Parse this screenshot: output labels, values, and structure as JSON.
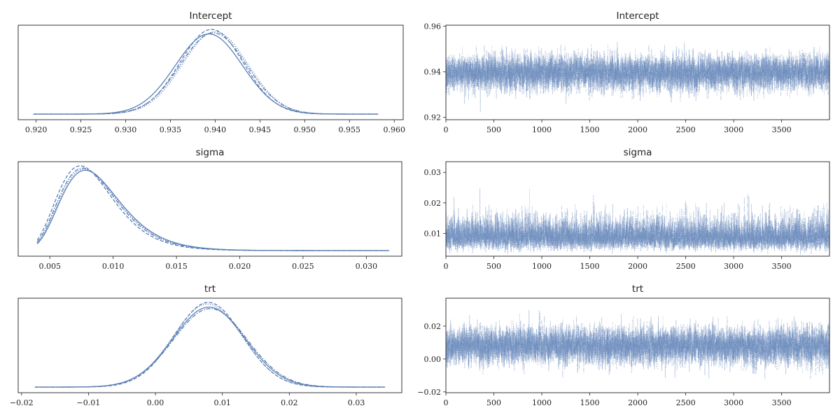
{
  "chart_data": [
    {
      "type": "line",
      "panel": "density",
      "title": "Intercept",
      "xlim": [
        0.918,
        0.961
      ],
      "x_ticks": [
        0.92,
        0.925,
        0.93,
        0.935,
        0.94,
        0.945,
        0.95,
        0.955,
        0.96
      ],
      "x_tick_labels": [
        "0.920",
        "0.925",
        "0.930",
        "0.935",
        "0.940",
        "0.945",
        "0.950",
        "0.955",
        "0.960"
      ],
      "y_ticks_visible": false,
      "support": [
        0.9197,
        0.9582
      ],
      "series": [
        {
          "style": "solid",
          "mean": 0.9393,
          "sd": 0.00375
        },
        {
          "style": "dotted",
          "mean": 0.94,
          "sd": 0.00365
        },
        {
          "style": "dashed",
          "mean": 0.9396,
          "sd": 0.00355
        },
        {
          "style": "dash-dot",
          "mean": 0.9398,
          "sd": 0.0037
        }
      ],
      "color": "#5b7fb4"
    },
    {
      "type": "line",
      "panel": "trace",
      "title": "Intercept",
      "xlim": [
        0,
        3999
      ],
      "ylim": [
        0.919,
        0.9605
      ],
      "x_ticks": [
        0,
        500,
        1000,
        1500,
        2000,
        2500,
        3000,
        3500
      ],
      "x_tick_labels": [
        "0",
        "500",
        "1000",
        "1500",
        "2000",
        "2500",
        "3000",
        "3500"
      ],
      "y_ticks": [
        0.92,
        0.94,
        0.96
      ],
      "y_tick_labels": [
        "0.92",
        "0.94",
        "0.96"
      ],
      "draws": 4000,
      "chains": 4,
      "center": 0.9397,
      "spread": 0.0037,
      "color": "#5b7fb4"
    },
    {
      "type": "line",
      "panel": "density",
      "title": "sigma",
      "xlim": [
        0.0025,
        0.0328
      ],
      "x_ticks": [
        0.005,
        0.01,
        0.015,
        0.02,
        0.025,
        0.03
      ],
      "x_tick_labels": [
        "0.005",
        "0.010",
        "0.015",
        "0.020",
        "0.025",
        "0.030"
      ],
      "y_ticks_visible": false,
      "support": [
        0.004,
        0.0318
      ],
      "series": [
        {
          "style": "solid",
          "mode": 0.0078
        },
        {
          "style": "dotted",
          "mode": 0.0077
        },
        {
          "style": "dashed",
          "mode": 0.0074
        },
        {
          "style": "dash-dot",
          "mode": 0.0076
        }
      ],
      "color": "#5b7fb4"
    },
    {
      "type": "line",
      "panel": "trace",
      "title": "sigma",
      "xlim": [
        0,
        3999
      ],
      "ylim": [
        0.0025,
        0.0335
      ],
      "x_ticks": [
        0,
        500,
        1000,
        1500,
        2000,
        2500,
        3000,
        3500
      ],
      "x_tick_labels": [
        "0",
        "500",
        "1000",
        "1500",
        "2000",
        "2500",
        "3000",
        "3500"
      ],
      "y_ticks": [
        0.01,
        0.02,
        0.03
      ],
      "y_tick_labels": [
        "0.01",
        "0.02",
        "0.03"
      ],
      "draws": 4000,
      "chains": 4,
      "center": 0.0088,
      "spread": 0.0025,
      "color": "#5b7fb4"
    },
    {
      "type": "line",
      "panel": "density",
      "title": "trt",
      "xlim": [
        -0.0205,
        0.0368
      ],
      "x_ticks": [
        -0.02,
        -0.01,
        0.0,
        0.01,
        0.02,
        0.03
      ],
      "x_tick_labels": [
        "−0.02",
        "−0.01",
        "0.00",
        "0.01",
        "0.02",
        "0.03"
      ],
      "y_ticks_visible": false,
      "support": [
        -0.018,
        0.0343
      ],
      "series": [
        {
          "style": "solid",
          "mean": 0.008,
          "sd": 0.0054
        },
        {
          "style": "dotted",
          "mean": 0.0078,
          "sd": 0.0052
        },
        {
          "style": "dashed",
          "mean": 0.0079,
          "sd": 0.0051
        },
        {
          "style": "dash-dot",
          "mean": 0.0082,
          "sd": 0.0055
        }
      ],
      "color": "#5b7fb4"
    },
    {
      "type": "line",
      "panel": "trace",
      "title": "trt",
      "xlim": [
        0,
        3999
      ],
      "ylim": [
        -0.0205,
        0.037
      ],
      "x_ticks": [
        0,
        500,
        1000,
        1500,
        2000,
        2500,
        3000,
        3500
      ],
      "x_tick_labels": [
        "0",
        "500",
        "1000",
        "1500",
        "2000",
        "2500",
        "3000",
        "3500"
      ],
      "y_ticks": [
        -0.02,
        0.0,
        0.02
      ],
      "y_tick_labels": [
        "−0.02",
        "0.00",
        "0.02"
      ],
      "draws": 4000,
      "chains": 4,
      "center": 0.008,
      "spread": 0.0054,
      "color": "#5b7fb4"
    }
  ]
}
